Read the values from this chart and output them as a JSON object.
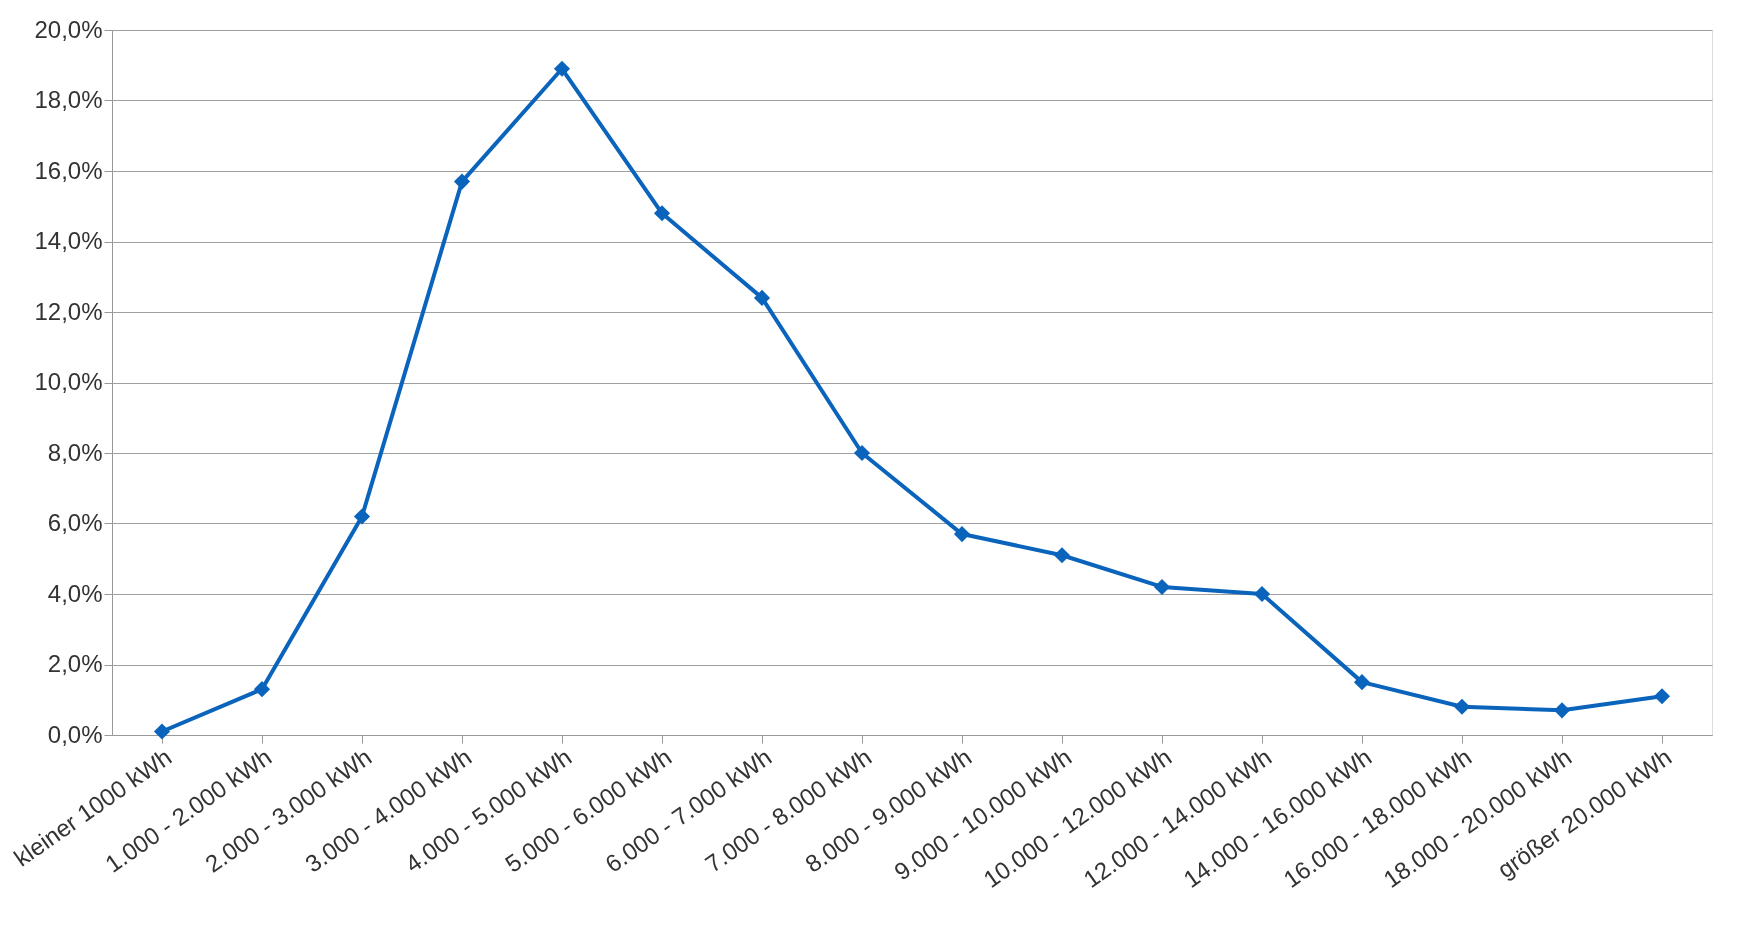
{
  "chart_data": {
    "type": "line",
    "categories": [
      "kleiner 1000 kWh",
      "1.000 - 2.000 kWh",
      "2.000 - 3.000 kWh",
      "3.000 - 4.000 kWh",
      "4.000 - 5.000 kWh",
      "5.000 - 6.000 kWh",
      "6.000 - 7.000 kWh",
      "7.000 - 8.000 kWh",
      "8.000 - 9.000 kWh",
      "9.000 - 10.000 kWh",
      "10.000 - 12.000 kWh",
      "12.000 - 14.000 kWh",
      "14.000 - 16.000 kWh",
      "16.000 - 18.000 kWh",
      "18.000 - 20.000 kWh",
      "größer 20.000 kWh"
    ],
    "series": [
      {
        "color": "#0a64bc",
        "values": [
          0.1,
          1.3,
          6.2,
          15.7,
          18.9,
          14.8,
          12.4,
          8.0,
          5.7,
          5.1,
          4.2,
          4.0,
          1.5,
          0.8,
          0.7,
          1.1
        ]
      }
    ],
    "ylim": [
      0,
      20
    ],
    "yticks": [
      {
        "value": 0,
        "label": "0,0%"
      },
      {
        "value": 2,
        "label": "2,0%"
      },
      {
        "value": 4,
        "label": "4,0%"
      },
      {
        "value": 6,
        "label": "6,0%"
      },
      {
        "value": 8,
        "label": "8,0%"
      },
      {
        "value": 10,
        "label": "10,0%"
      },
      {
        "value": 12,
        "label": "12,0%"
      },
      {
        "value": 14,
        "label": "14,0%"
      },
      {
        "value": 16,
        "label": "16,0%"
      },
      {
        "value": 18,
        "label": "18,0%"
      },
      {
        "value": 20,
        "label": "20,0%"
      }
    ],
    "grid": "y",
    "marker": "diamond",
    "line_style": "solid"
  }
}
